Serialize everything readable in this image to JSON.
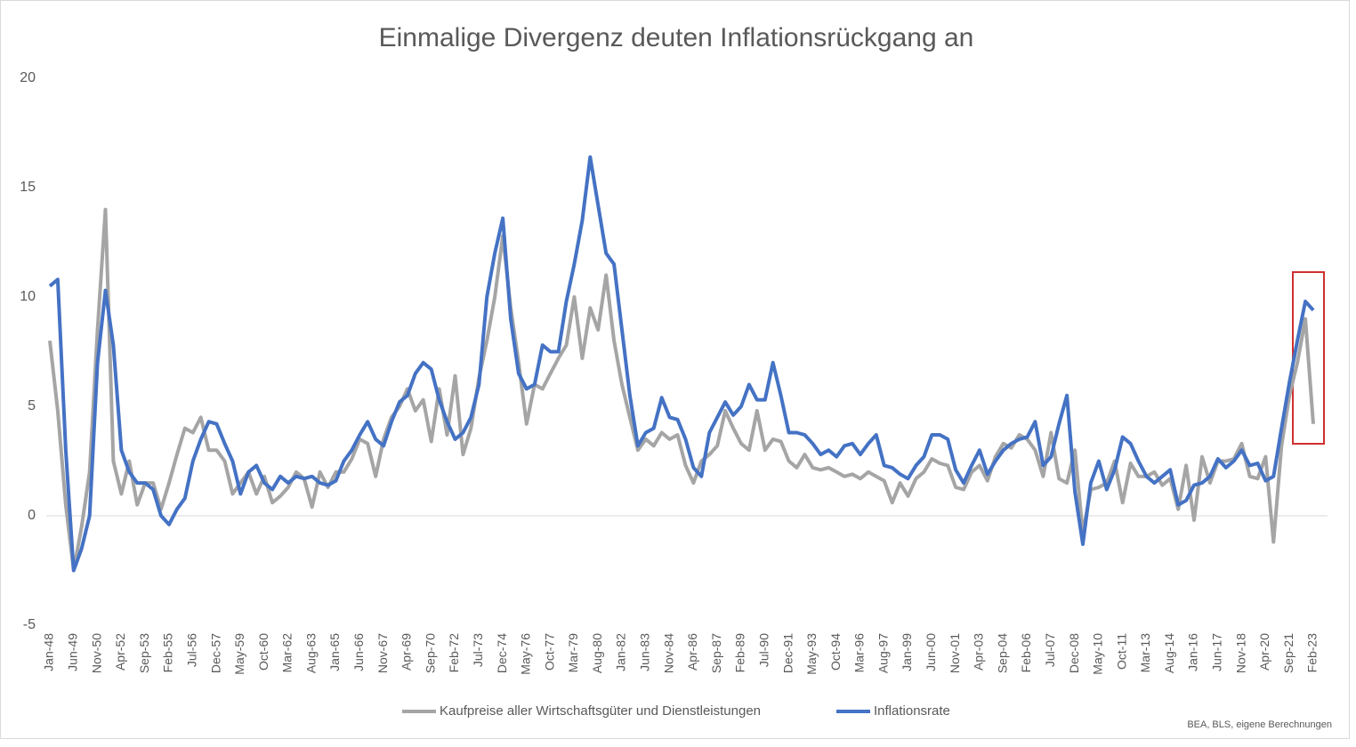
{
  "chart_data": {
    "type": "line",
    "title": "Einmalige Divergenz deuten Inflationsrückgang an",
    "source": "BEA, BLS, eigene Berechnungen",
    "categories": [
      "Jan-48",
      null,
      null,
      "Jun-49",
      null,
      null,
      "Nov-50",
      null,
      null,
      "Apr-52",
      null,
      null,
      "Sep-53",
      null,
      null,
      "Feb-55",
      null,
      null,
      "Jul-56",
      null,
      null,
      "Dec-57",
      null,
      null,
      "May-59",
      null,
      null,
      "Oct-60",
      null,
      null,
      "Mar-62",
      null,
      null,
      "Aug-63",
      null,
      null,
      "Jan-65",
      null,
      null,
      "Jun-66",
      null,
      null,
      "Nov-67",
      null,
      null,
      "Apr-69",
      null,
      null,
      "Sep-70",
      null,
      null,
      "Feb-72",
      null,
      null,
      "Jul-73",
      null,
      null,
      "Dec-74",
      null,
      null,
      "May-76",
      null,
      null,
      "Oct-77",
      null,
      null,
      "Mar-79",
      null,
      null,
      "Aug-80",
      null,
      null,
      "Jan-82",
      null,
      null,
      "Jun-83",
      null,
      null,
      "Nov-84",
      null,
      null,
      "Apr-86",
      null,
      null,
      "Sep-87",
      null,
      null,
      "Feb-89",
      null,
      null,
      "Jul-90",
      null,
      null,
      "Dec-91",
      null,
      null,
      "May-93",
      null,
      null,
      "Oct-94",
      null,
      null,
      "Mar-96",
      null,
      null,
      "Aug-97",
      null,
      null,
      "Jan-99",
      null,
      null,
      "Jun-00",
      null,
      null,
      "Nov-01",
      null,
      null,
      "Apr-03",
      null,
      null,
      "Sep-04",
      null,
      null,
      "Feb-06",
      null,
      null,
      "Jul-07",
      null,
      null,
      "Dec-08",
      null,
      null,
      "May-10",
      null,
      null,
      "Oct-11",
      null,
      null,
      "Mar-13",
      null,
      null,
      "Aug-14",
      null,
      null,
      "Jan-16",
      null,
      null,
      "Jun-17",
      null,
      null,
      "Nov-18",
      null,
      null,
      "Apr-20",
      null,
      null,
      "Sep-21",
      null,
      null,
      "Feb-23"
    ],
    "series": [
      {
        "name": "Kaufpreise aller Wirtschaftsgüter und Dienstleistungen",
        "color": "#a5a5a5",
        "values": [
          8,
          4.8,
          0.5,
          -2.5,
          -0.5,
          2,
          8.5,
          14,
          2.5,
          1,
          2.5,
          0.5,
          1.5,
          1.5,
          0.3,
          1.5,
          2.8,
          4,
          3.8,
          4.5,
          3,
          3,
          2.5,
          1,
          1.5,
          2,
          1,
          1.8,
          0.6,
          0.9,
          1.3,
          2,
          1.7,
          0.4,
          2,
          1.3,
          2,
          2,
          2.6,
          3.5,
          3.3,
          1.8,
          3.5,
          4.5,
          5,
          5.8,
          4.8,
          5.3,
          3.4,
          5.8,
          3.7,
          6.4,
          2.8,
          4,
          6.3,
          8,
          10,
          12.8,
          9.5,
          7,
          4.2,
          6,
          5.8,
          6.5,
          7.2,
          7.8,
          10,
          7.2,
          9.5,
          8.5,
          11,
          8,
          6,
          4.5,
          3,
          3.5,
          3.2,
          3.8,
          3.5,
          3.7,
          2.3,
          1.5,
          2.5,
          2.8,
          3.2,
          4.8,
          4,
          3.3,
          3,
          4.8,
          3,
          3.5,
          3.4,
          2.5,
          2.2,
          2.8,
          2.2,
          2.1,
          2.2,
          2,
          1.8,
          1.9,
          1.7,
          2,
          1.8,
          1.6,
          0.6,
          1.5,
          0.9,
          1.7,
          2,
          2.6,
          2.4,
          2.3,
          1.3,
          1.2,
          2,
          2.3,
          1.6,
          2.7,
          3.3,
          3.1,
          3.7,
          3.5,
          3,
          1.8,
          3.8,
          1.7,
          1.5,
          3,
          -0.8,
          1.2,
          1.3,
          1.5,
          2.5,
          0.6,
          2.4,
          1.8,
          1.8,
          2,
          1.4,
          1.7,
          0.3,
          2.3,
          -0.2,
          2.7,
          1.5,
          2.5,
          2.5,
          2.6,
          3.3,
          1.8,
          1.7,
          2.7,
          -1.2,
          3.2,
          5.5,
          7,
          9,
          4.2
        ]
      },
      {
        "name": "Inflationsrate",
        "color": "#4472c4",
        "values": [
          10.5,
          10.8,
          3,
          -2.5,
          -1.5,
          0,
          7,
          10.3,
          7.8,
          3,
          2,
          1.5,
          1.5,
          1.2,
          0,
          -0.4,
          0.3,
          0.8,
          2.5,
          3.5,
          4.3,
          4.2,
          3.3,
          2.5,
          1,
          2,
          2.3,
          1.5,
          1.2,
          1.8,
          1.5,
          1.8,
          1.7,
          1.8,
          1.5,
          1.4,
          1.6,
          2.5,
          3,
          3.7,
          4.3,
          3.5,
          3.2,
          4.3,
          5.2,
          5.5,
          6.5,
          7,
          6.7,
          5.3,
          4.3,
          3.5,
          3.8,
          4.5,
          6,
          10,
          12,
          13.6,
          9,
          6.5,
          5.8,
          6,
          7.8,
          7.5,
          7.5,
          9.8,
          11.5,
          13.5,
          16.4,
          14.2,
          12,
          11.5,
          8.5,
          5.5,
          3.2,
          3.8,
          4,
          5.4,
          4.5,
          4.4,
          3.5,
          2.2,
          1.8,
          3.8,
          4.5,
          5.2,
          4.6,
          5,
          6,
          5.3,
          5.3,
          7,
          5.5,
          3.8,
          3.8,
          3.7,
          3.3,
          2.8,
          3,
          2.7,
          3.2,
          3.3,
          2.8,
          3.3,
          3.7,
          2.3,
          2.2,
          1.9,
          1.7,
          2.3,
          2.7,
          3.7,
          3.7,
          3.5,
          2.1,
          1.5,
          2.3,
          3,
          1.9,
          2.5,
          3,
          3.3,
          3.5,
          3.6,
          4.3,
          2.3,
          2.7,
          4.2,
          5.5,
          1.1,
          -1.3,
          1.5,
          2.5,
          1.2,
          2.1,
          3.6,
          3.3,
          2.5,
          1.8,
          1.5,
          1.8,
          2.1,
          0.5,
          0.7,
          1.4,
          1.5,
          1.8,
          2.6,
          2.2,
          2.5,
          3,
          2.3,
          2.4,
          1.6,
          1.8,
          4,
          6.1,
          8,
          9.8,
          9.4
        ]
      }
    ],
    "ylim": [
      -5,
      20
    ],
    "yticks": [
      -5,
      0,
      5,
      10,
      15,
      20
    ],
    "grid": false,
    "legend": "bottom"
  }
}
